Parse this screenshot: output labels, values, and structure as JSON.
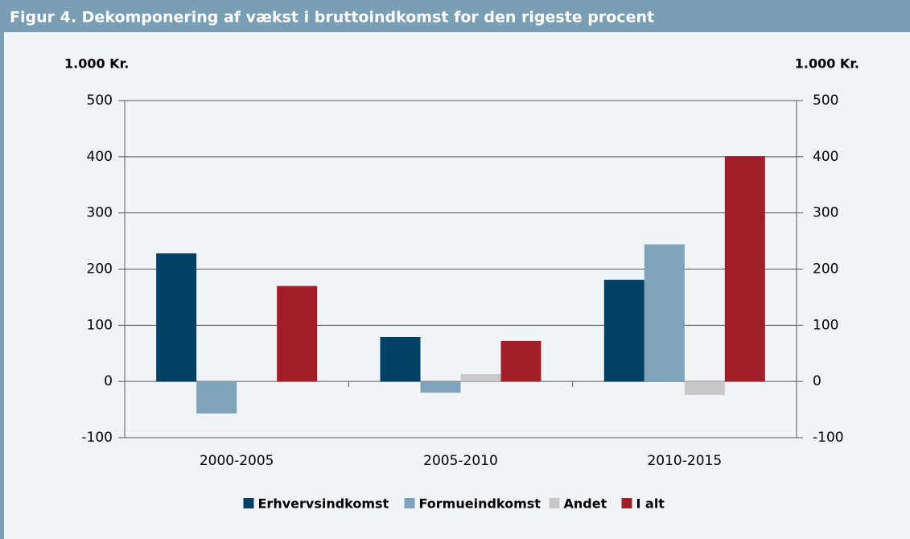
{
  "chart_data": {
    "type": "bar",
    "title": "Figur 4. Dekomponering af vækst i bruttoindkomst for den rigeste procent",
    "y_label": "1.000 Kr.",
    "y2_label": "1.000 Kr.",
    "categories": [
      "2000-2005",
      "2005-2010",
      "2010-2015"
    ],
    "series": [
      {
        "name": "Erhvervsindkomst",
        "color": "#003f66",
        "values": [
          228,
          79,
          181
        ]
      },
      {
        "name": "Formueindkomst",
        "color": "#7fa3b9",
        "values": [
          -57,
          -20,
          244
        ]
      },
      {
        "name": "Andet",
        "color": "#c8c8c8",
        "values": [
          0,
          13,
          -24
        ]
      },
      {
        "name": "I alt",
        "color": "#a01e28",
        "values": [
          170,
          72,
          401
        ]
      }
    ],
    "ylim": [
      -100,
      500
    ],
    "yticks": [
      -100,
      0,
      100,
      200,
      300,
      400,
      500
    ],
    "y2lim": [
      -100,
      500
    ],
    "y2ticks": [
      -100,
      0,
      100,
      200,
      300,
      400,
      500
    ],
    "grid": true,
    "legend": "bottom"
  }
}
